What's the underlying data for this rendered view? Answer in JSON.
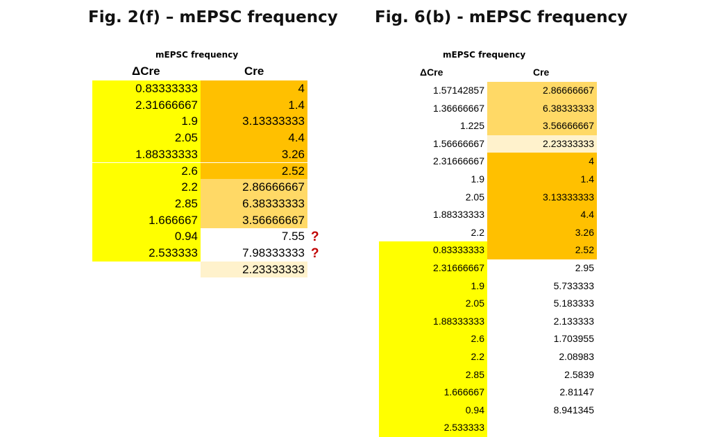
{
  "colors": {
    "yellow": "#ffff00",
    "orange": "#ffc000",
    "light_orange": "#ffd966",
    "pale_orange": "#fff2cc",
    "white": "#ffffff",
    "question": "#c00000"
  },
  "left": {
    "title": "Fig. 2(f) – mEPSC frequency",
    "subtitle": "mEPSC frequency",
    "col1_header": "ΔCre",
    "col2_header": "Cre",
    "col1": [
      {
        "v": "0.83333333",
        "c": "yellow"
      },
      {
        "v": "2.31666667",
        "c": "yellow"
      },
      {
        "v": "1.9",
        "c": "yellow"
      },
      {
        "v": "2.05",
        "c": "yellow"
      },
      {
        "v": "1.88333333",
        "c": "yellow"
      },
      {
        "v": "2.6",
        "c": "yellow"
      },
      {
        "v": "2.2",
        "c": "yellow"
      },
      {
        "v": "2.85",
        "c": "yellow"
      },
      {
        "v": "1.666667",
        "c": "yellow"
      },
      {
        "v": "0.94",
        "c": "yellow"
      },
      {
        "v": "2.533333",
        "c": "yellow"
      }
    ],
    "col2": [
      {
        "v": "4",
        "c": "orange"
      },
      {
        "v": "1.4",
        "c": "orange"
      },
      {
        "v": "3.13333333",
        "c": "orange"
      },
      {
        "v": "4.4",
        "c": "orange"
      },
      {
        "v": "3.26",
        "c": "orange"
      },
      {
        "v": "2.52",
        "c": "orange"
      },
      {
        "v": "2.86666667",
        "c": "light_orange"
      },
      {
        "v": "6.38333333",
        "c": "light_orange"
      },
      {
        "v": "3.56666667",
        "c": "light_orange"
      },
      {
        "v": "7.55",
        "c": "white",
        "q": "?"
      },
      {
        "v": "7.98333333",
        "c": "white",
        "q": "?"
      },
      {
        "v": "2.23333333",
        "c": "pale_orange"
      }
    ]
  },
  "right": {
    "title": "Fig. 6(b) - mEPSC frequency",
    "subtitle": "mEPSC frequency",
    "col1_header": "ΔCre",
    "col2_header": "Cre",
    "col1": [
      {
        "v": "1.57142857",
        "c": "white"
      },
      {
        "v": "1.36666667",
        "c": "white"
      },
      {
        "v": "1.225",
        "c": "white"
      },
      {
        "v": "1.56666667",
        "c": "white"
      },
      {
        "v": "2.31666667",
        "c": "white"
      },
      {
        "v": "1.9",
        "c": "white"
      },
      {
        "v": "2.05",
        "c": "white"
      },
      {
        "v": "1.88333333",
        "c": "white"
      },
      {
        "v": "2.2",
        "c": "white"
      },
      {
        "v": "0.83333333",
        "c": "yellow"
      },
      {
        "v": "2.31666667",
        "c": "yellow"
      },
      {
        "v": "1.9",
        "c": "yellow"
      },
      {
        "v": "2.05",
        "c": "yellow"
      },
      {
        "v": "1.88333333",
        "c": "yellow"
      },
      {
        "v": "2.6",
        "c": "yellow"
      },
      {
        "v": "2.2",
        "c": "yellow"
      },
      {
        "v": "2.85",
        "c": "yellow"
      },
      {
        "v": "1.666667",
        "c": "yellow"
      },
      {
        "v": "0.94",
        "c": "yellow"
      },
      {
        "v": "2.533333",
        "c": "yellow"
      }
    ],
    "col2": [
      {
        "v": "2.86666667",
        "c": "light_orange"
      },
      {
        "v": "6.38333333",
        "c": "light_orange"
      },
      {
        "v": "3.56666667",
        "c": "light_orange"
      },
      {
        "v": "2.23333333",
        "c": "pale_orange"
      },
      {
        "v": "4",
        "c": "orange"
      },
      {
        "v": "1.4",
        "c": "orange"
      },
      {
        "v": "3.13333333",
        "c": "orange"
      },
      {
        "v": "4.4",
        "c": "orange"
      },
      {
        "v": "3.26",
        "c": "orange"
      },
      {
        "v": "2.52",
        "c": "orange"
      },
      {
        "v": "2.95",
        "c": "white"
      },
      {
        "v": "5.733333",
        "c": "white"
      },
      {
        "v": "5.183333",
        "c": "white"
      },
      {
        "v": "2.133333",
        "c": "white"
      },
      {
        "v": "1.703955",
        "c": "white"
      },
      {
        "v": "2.08983",
        "c": "white"
      },
      {
        "v": "2.5839",
        "c": "white"
      },
      {
        "v": "2.81147",
        "c": "white"
      },
      {
        "v": "8.941345",
        "c": "white"
      }
    ]
  }
}
